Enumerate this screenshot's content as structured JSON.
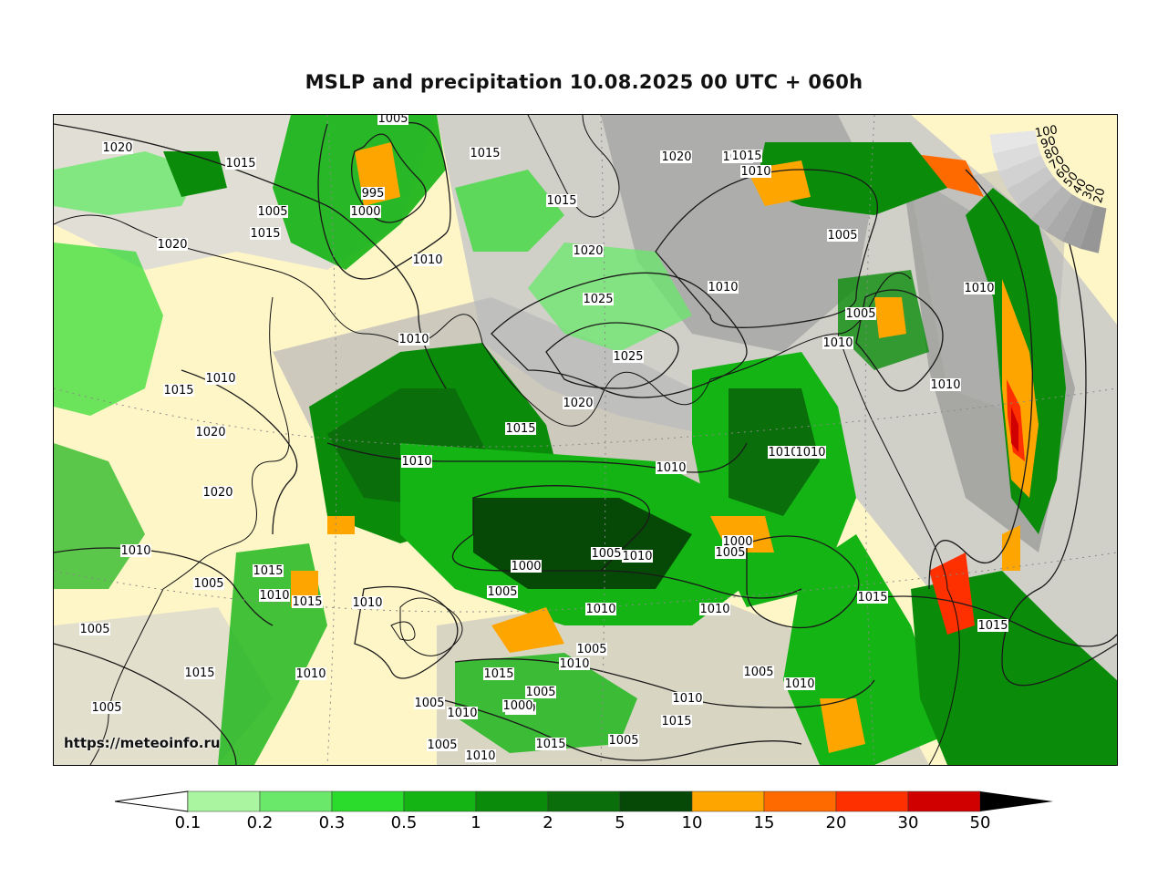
{
  "header": {
    "title": "MSLP and precipitation 10.08.2025 00 UTC + 060h"
  },
  "watermark": "https://meteoinfo.ru",
  "colorbar": {
    "ticks": [
      "0.1",
      "0.2",
      "0.3",
      "0.5",
      "1",
      "2",
      "5",
      "10",
      "15",
      "20",
      "30",
      "50"
    ],
    "colors": [
      "#aaf5a0",
      "#6ae86a",
      "#2cdc2c",
      "#14b414",
      "#0a8c0a",
      "#0a6e0a",
      "#064806",
      "#ffa500",
      "#ff6a00",
      "#ff3000",
      "#d00000",
      "#9a0000",
      "#000000"
    ]
  },
  "map": {
    "land_color": "#fff6c8",
    "cloud_colors": [
      "#f2f2f2",
      "#dcdcdc",
      "#c4c4c4",
      "#acacac",
      "#969696"
    ],
    "isobar_labels": [
      {
        "text": "1020"
      },
      {
        "text": "1015"
      },
      {
        "text": "1005"
      },
      {
        "text": "995"
      },
      {
        "text": "1000"
      },
      {
        "text": "1015"
      },
      {
        "text": "1015"
      },
      {
        "text": "1010"
      },
      {
        "text": "1015"
      },
      {
        "text": "1020"
      },
      {
        "text": "1020"
      },
      {
        "text": "1025"
      },
      {
        "text": "1025"
      },
      {
        "text": "1020"
      },
      {
        "text": "1015"
      },
      {
        "text": "1010"
      },
      {
        "text": "1020"
      },
      {
        "text": "1015"
      },
      {
        "text": "1010"
      },
      {
        "text": "1005"
      },
      {
        "text": "1005"
      },
      {
        "text": "1010"
      },
      {
        "text": "1005"
      },
      {
        "text": "1010"
      },
      {
        "text": "1010"
      },
      {
        "text": "1015"
      },
      {
        "text": "1010"
      },
      {
        "text": "1010"
      },
      {
        "text": "1020"
      },
      {
        "text": "1015"
      },
      {
        "text": "1020"
      },
      {
        "text": "1020"
      },
      {
        "text": "1010"
      },
      {
        "text": "1010"
      },
      {
        "text": "1010"
      },
      {
        "text": "1000"
      },
      {
        "text": "1005"
      },
      {
        "text": "1005"
      },
      {
        "text": "1010"
      },
      {
        "text": "1005"
      },
      {
        "text": "1000"
      },
      {
        "text": "1015"
      },
      {
        "text": "1010"
      },
      {
        "text": "1005"
      },
      {
        "text": "1015"
      },
      {
        "text": "1010"
      },
      {
        "text": "1010"
      },
      {
        "text": "1010"
      },
      {
        "text": "1010"
      },
      {
        "text": "1005"
      },
      {
        "text": "1010"
      },
      {
        "text": "1015"
      },
      {
        "text": "1010"
      },
      {
        "text": "1005"
      },
      {
        "text": "1010"
      },
      {
        "text": "1005"
      },
      {
        "text": "1000"
      },
      {
        "text": "1015"
      },
      {
        "text": "1005"
      },
      {
        "text": "1010"
      },
      {
        "text": "1005"
      },
      {
        "text": "1015"
      },
      {
        "text": "1005"
      },
      {
        "text": "1005"
      },
      {
        "text": "1010"
      },
      {
        "text": "1000"
      },
      {
        "text": "1015"
      },
      {
        "text": "1005"
      },
      {
        "text": "1015"
      },
      {
        "text": "1010"
      },
      {
        "text": "1010"
      },
      {
        "text": "1015"
      }
    ],
    "cloud_wheel_labels": [
      "100",
      "90",
      "80",
      "70",
      "60",
      "50",
      "40",
      "30",
      "20"
    ]
  }
}
